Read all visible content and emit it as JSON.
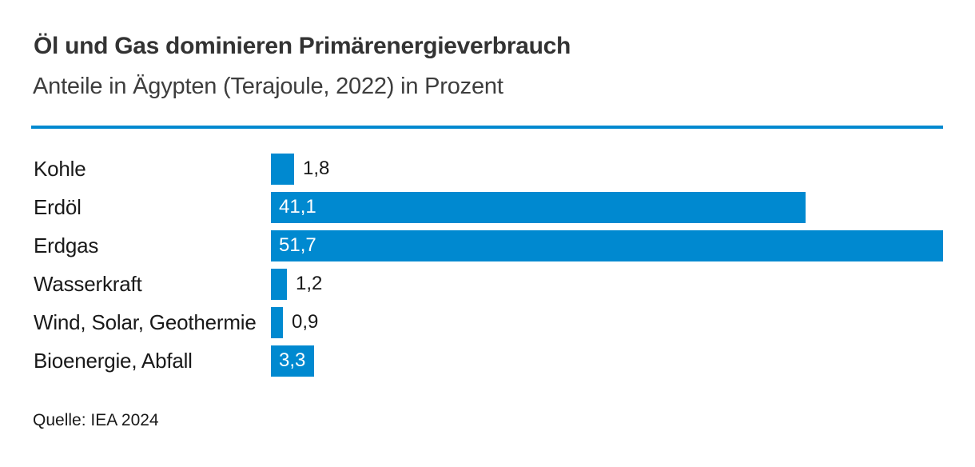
{
  "header": {
    "title": "Öl und Gas dominieren Primärenergieverbrauch",
    "subtitle": "Anteile in Ägypten (Terajoule, 2022) in Prozent"
  },
  "chart_data": {
    "type": "bar",
    "orientation": "horizontal",
    "title": "Öl und Gas dominieren Primärenergieverbrauch",
    "subtitle": "Anteile in Ägypten (Terajoule, 2022) in Prozent",
    "unit": "Prozent",
    "categories": [
      "Kohle",
      "Erdöl",
      "Erdgas",
      "Wasserkraft",
      "Wind, Solar, Geothermie",
      "Bioenergie, Abfall"
    ],
    "values": [
      1.8,
      41.1,
      51.7,
      1.2,
      0.9,
      3.3
    ],
    "value_labels": [
      "1,8",
      "41,1",
      "51,7",
      "1,2",
      "0,9",
      "3,3"
    ],
    "xlabel": "",
    "ylabel": "",
    "xlim": [
      0,
      51.7
    ],
    "grid": false,
    "legend": false,
    "bar_color": "#0089d0",
    "inside_label_min_value": 3.0
  },
  "footer": {
    "source": "Quelle: IEA 2024"
  },
  "colors": {
    "accent_blue": "#0089d0",
    "title_text": "#333333",
    "subtitle_text": "#3d3d3d",
    "label_text": "#191919",
    "value_inside_text": "#ffffff",
    "background": "#ffffff"
  }
}
